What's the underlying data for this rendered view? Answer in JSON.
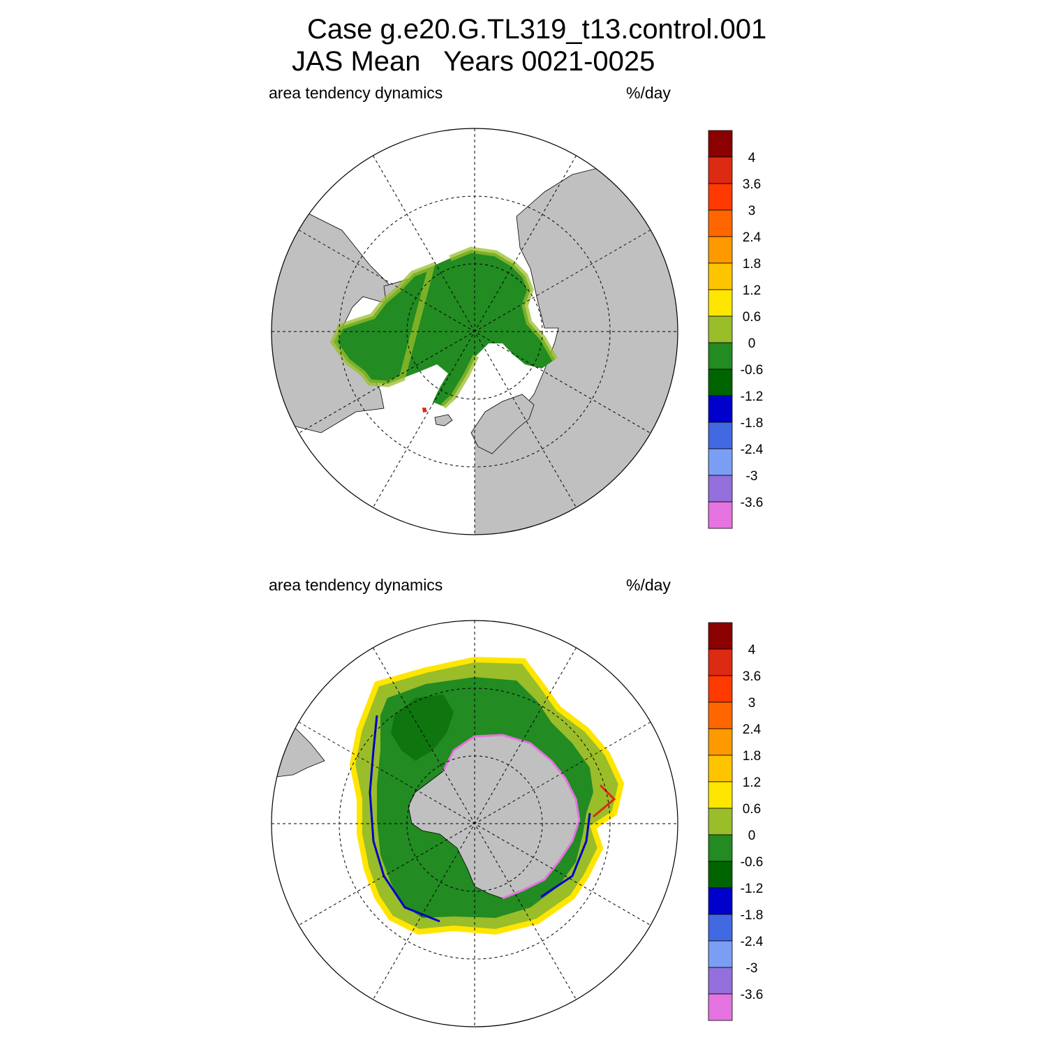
{
  "title": {
    "line1": "Case g.e20.G.TL319_t13.control.001",
    "line2": "JAS Mean   Years 0021-0025"
  },
  "panels": [
    {
      "hemisphere": "north",
      "left_label": "area tendency dynamics",
      "right_label": "%/day"
    },
    {
      "hemisphere": "south",
      "left_label": "area tendency dynamics",
      "right_label": "%/day"
    }
  ],
  "colorbar": {
    "tick_labels": [
      "4",
      "3.6",
      "3",
      "2.4",
      "1.8",
      "1.2",
      "0.6",
      "0",
      "-0.6",
      "-1.2",
      "-1.8",
      "-2.4",
      "-3",
      "-3.6"
    ],
    "colors": [
      "#8b0000",
      "#dd2a12",
      "#ff3a00",
      "#ff6600",
      "#ff9900",
      "#ffc400",
      "#ffe600",
      "#9abd2a",
      "#228b22",
      "#006400",
      "#0000cd",
      "#4169e1",
      "#7b9ef5",
      "#9370db",
      "#e573e0"
    ]
  },
  "colors": {
    "land": "#c0c0c0",
    "ocean": "#ffffff",
    "grid": "#000000"
  }
}
